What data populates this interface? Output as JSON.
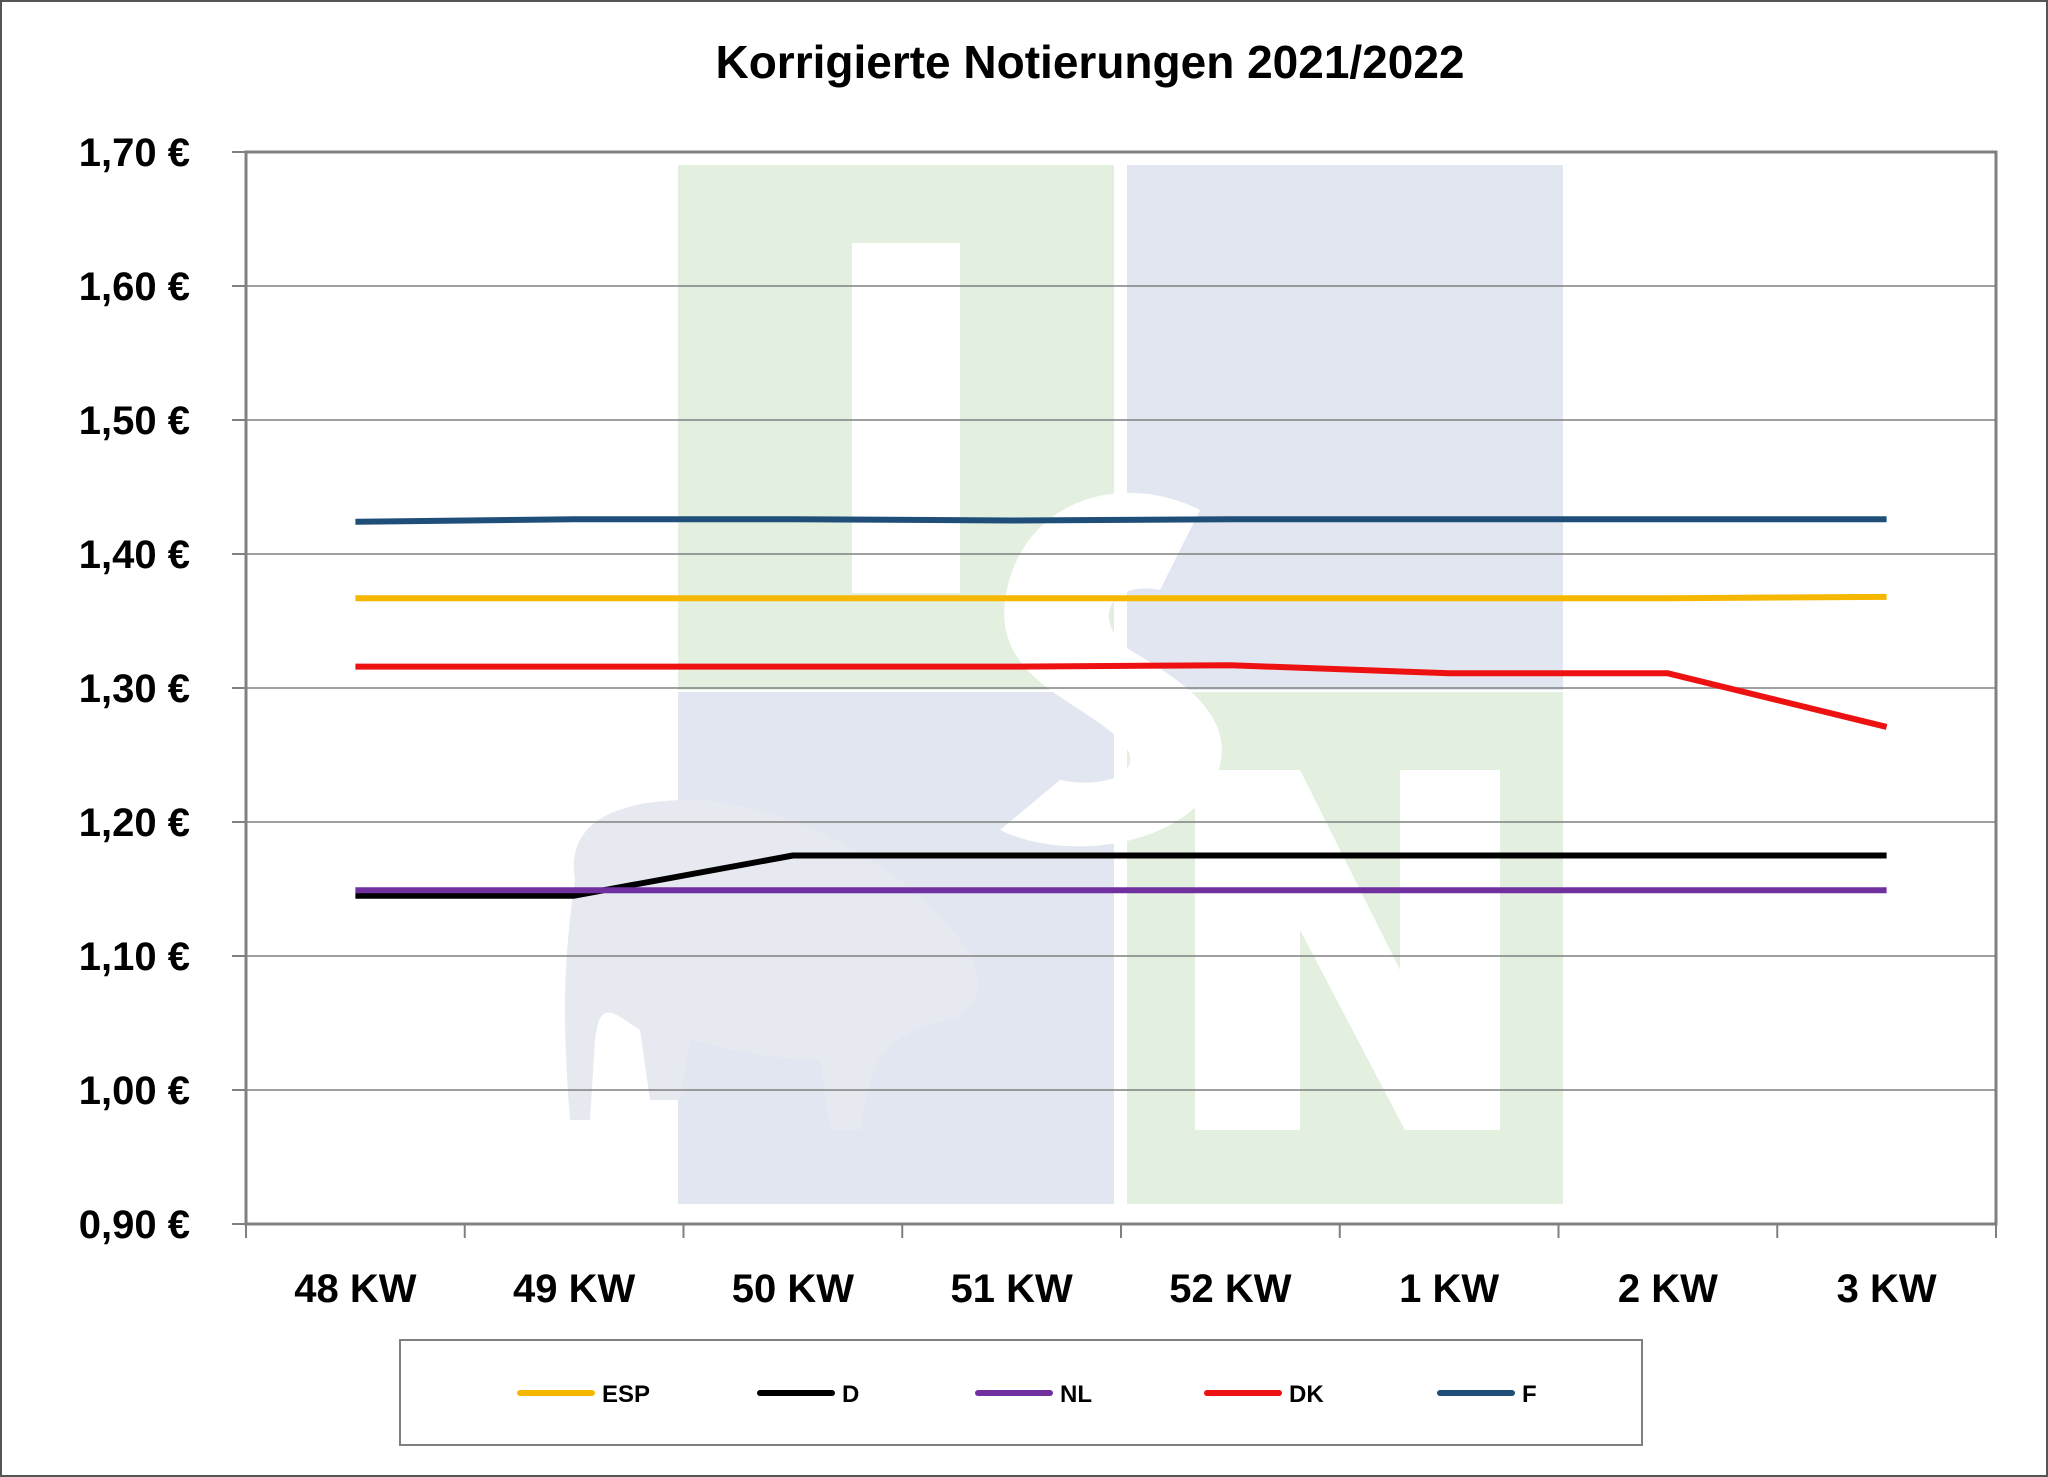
{
  "chart_data": {
    "type": "line",
    "title": "Korrigierte Notierungen 2021/2022",
    "xlabel": "",
    "ylabel": "",
    "categories": [
      "48 KW",
      "49 KW",
      "50 KW",
      "51 KW",
      "52 KW",
      "1 KW",
      "2 KW",
      "3 KW"
    ],
    "ylim": [
      0.9,
      1.7
    ],
    "yticks": [
      "0,90 €",
      "1,00 €",
      "1,10 €",
      "1,20 €",
      "1,30 €",
      "1,40 €",
      "1,50 €",
      "1,60 €",
      "1,70 €"
    ],
    "grid": true,
    "legend_position": "bottom",
    "series": [
      {
        "name": "ESP",
        "color": "#F5B700",
        "values": [
          1.367,
          1.367,
          1.367,
          1.367,
          1.367,
          1.367,
          1.367,
          1.368
        ]
      },
      {
        "name": "D",
        "color": "#000000",
        "values": [
          1.145,
          1.145,
          1.175,
          1.175,
          1.175,
          1.175,
          1.175,
          1.175
        ]
      },
      {
        "name": "NL",
        "color": "#7030A0",
        "values": [
          1.149,
          1.149,
          1.149,
          1.149,
          1.149,
          1.149,
          1.149,
          1.149
        ]
      },
      {
        "name": "DK",
        "color": "#EE1111",
        "values": [
          1.316,
          1.316,
          1.316,
          1.316,
          1.317,
          1.311,
          1.311,
          1.271
        ]
      },
      {
        "name": "F",
        "color": "#1F4E79",
        "values": [
          1.424,
          1.426,
          1.426,
          1.425,
          1.426,
          1.426,
          1.426,
          1.426
        ]
      }
    ]
  }
}
